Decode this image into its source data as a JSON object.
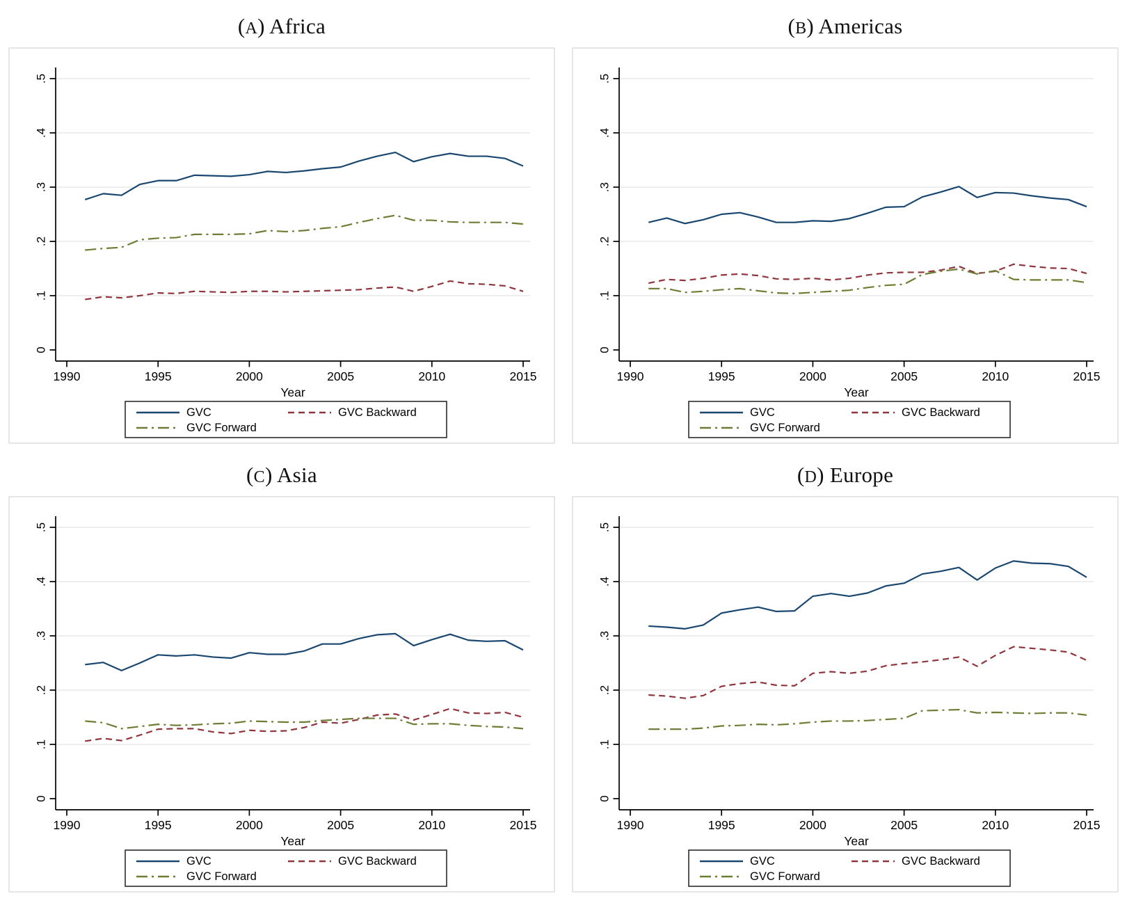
{
  "figure": {
    "x_axis_label": "Year",
    "x_ticks": [
      1990,
      1995,
      2000,
      2005,
      2010,
      2015
    ],
    "y_ticks": [
      "0",
      ".1",
      ".2",
      ".3",
      ".4",
      ".5"
    ],
    "y_tick_values": [
      0,
      0.1,
      0.2,
      0.3,
      0.4,
      0.5
    ],
    "legend_labels": [
      "GVC",
      "GVC Backward",
      "GVC Forward"
    ],
    "colors": {
      "gvc": "#1a476f",
      "gvc_backward": "#90353b",
      "gvc_forward": "#6d7d34",
      "gridline": "#e7eaea",
      "outer_border": "#d9d9d9",
      "axis": "#000000"
    }
  },
  "chart_data": [
    {
      "type": "line",
      "title": "(A) Africa",
      "title_letter": "A",
      "title_region": "Africa",
      "xlabel": "Year",
      "x_ticks": [
        1990,
        1995,
        2000,
        2005,
        2010,
        2015
      ],
      "y_ticks": [
        "0",
        ".1",
        ".2",
        ".3",
        ".4",
        ".5"
      ],
      "y_tick_values": [
        0,
        0.1,
        0.2,
        0.3,
        0.4,
        0.5
      ],
      "xlim": [
        1989.4,
        2015.3
      ],
      "ylim": [
        0,
        0.52
      ],
      "grid": "horizontal",
      "legend_position": "bottom",
      "x": [
        1991,
        1992,
        1993,
        1994,
        1995,
        1996,
        1997,
        1998,
        1999,
        2000,
        2001,
        2002,
        2003,
        2004,
        2005,
        2006,
        2007,
        2008,
        2009,
        2010,
        2011,
        2012,
        2013,
        2014,
        2015
      ],
      "series": [
        {
          "name": "GVC",
          "color": "#1a476f",
          "line_style": "solid",
          "values": [
            0.277,
            0.288,
            0.285,
            0.305,
            0.312,
            0.312,
            0.322,
            0.321,
            0.32,
            0.323,
            0.329,
            0.327,
            0.33,
            0.334,
            0.337,
            0.348,
            0.357,
            0.364,
            0.347,
            0.356,
            0.362,
            0.357,
            0.357,
            0.353,
            0.339
          ]
        },
        {
          "name": "GVC Backward",
          "color": "#90353b",
          "line_style": "dashed",
          "values": [
            0.093,
            0.098,
            0.096,
            0.1,
            0.105,
            0.104,
            0.108,
            0.107,
            0.106,
            0.108,
            0.108,
            0.107,
            0.108,
            0.109,
            0.11,
            0.111,
            0.114,
            0.116,
            0.108,
            0.117,
            0.127,
            0.122,
            0.121,
            0.118,
            0.108
          ]
        },
        {
          "name": "GVC Forward",
          "color": "#6d7d34",
          "line_style": "dash-dot",
          "values": [
            0.184,
            0.187,
            0.189,
            0.203,
            0.206,
            0.207,
            0.213,
            0.213,
            0.213,
            0.214,
            0.22,
            0.218,
            0.22,
            0.224,
            0.227,
            0.235,
            0.242,
            0.248,
            0.239,
            0.239,
            0.236,
            0.235,
            0.235,
            0.235,
            0.232
          ]
        }
      ]
    },
    {
      "type": "line",
      "title": "(B) Americas",
      "title_letter": "B",
      "title_region": "Americas",
      "xlabel": "Year",
      "x_ticks": [
        1990,
        1995,
        2000,
        2005,
        2010,
        2015
      ],
      "y_ticks": [
        "0",
        ".1",
        ".2",
        ".3",
        ".4",
        ".5"
      ],
      "y_tick_values": [
        0,
        0.1,
        0.2,
        0.3,
        0.4,
        0.5
      ],
      "xlim": [
        1989.4,
        2015.3
      ],
      "ylim": [
        0,
        0.52
      ],
      "grid": "horizontal",
      "legend_position": "bottom",
      "x": [
        1991,
        1992,
        1993,
        1994,
        1995,
        1996,
        1997,
        1998,
        1999,
        2000,
        2001,
        2002,
        2003,
        2004,
        2005,
        2006,
        2007,
        2008,
        2009,
        2010,
        2011,
        2012,
        2013,
        2014,
        2015
      ],
      "series": [
        {
          "name": "GVC",
          "color": "#1a476f",
          "line_style": "solid",
          "values": [
            0.235,
            0.243,
            0.233,
            0.24,
            0.25,
            0.253,
            0.245,
            0.235,
            0.235,
            0.238,
            0.237,
            0.242,
            0.252,
            0.263,
            0.264,
            0.282,
            0.291,
            0.301,
            0.281,
            0.29,
            0.289,
            0.284,
            0.28,
            0.277,
            0.264
          ]
        },
        {
          "name": "GVC Backward",
          "color": "#90353b",
          "line_style": "dashed",
          "values": [
            0.123,
            0.13,
            0.128,
            0.132,
            0.138,
            0.14,
            0.137,
            0.131,
            0.13,
            0.132,
            0.129,
            0.132,
            0.138,
            0.142,
            0.143,
            0.143,
            0.147,
            0.154,
            0.141,
            0.145,
            0.158,
            0.154,
            0.151,
            0.15,
            0.141
          ]
        },
        {
          "name": "GVC Forward",
          "color": "#6d7d34",
          "line_style": "dash-dot",
          "values": [
            0.113,
            0.113,
            0.106,
            0.108,
            0.111,
            0.113,
            0.109,
            0.105,
            0.104,
            0.106,
            0.108,
            0.11,
            0.115,
            0.119,
            0.121,
            0.139,
            0.145,
            0.149,
            0.14,
            0.146,
            0.13,
            0.129,
            0.129,
            0.129,
            0.124
          ]
        }
      ]
    },
    {
      "type": "line",
      "title": "(C) Asia",
      "title_letter": "C",
      "title_region": "Asia",
      "xlabel": "Year",
      "x_ticks": [
        1990,
        1995,
        2000,
        2005,
        2010,
        2015
      ],
      "y_ticks": [
        "0",
        ".1",
        ".2",
        ".3",
        ".4",
        ".5"
      ],
      "y_tick_values": [
        0,
        0.1,
        0.2,
        0.3,
        0.4,
        0.5
      ],
      "xlim": [
        1989.4,
        2015.3
      ],
      "ylim": [
        0,
        0.52
      ],
      "grid": "horizontal",
      "legend_position": "bottom",
      "x": [
        1991,
        1992,
        1993,
        1994,
        1995,
        1996,
        1997,
        1998,
        1999,
        2000,
        2001,
        2002,
        2003,
        2004,
        2005,
        2006,
        2007,
        2008,
        2009,
        2010,
        2011,
        2012,
        2013,
        2014,
        2015
      ],
      "series": [
        {
          "name": "GVC",
          "color": "#1a476f",
          "line_style": "solid",
          "values": [
            0.247,
            0.251,
            0.236,
            0.25,
            0.265,
            0.263,
            0.265,
            0.261,
            0.259,
            0.269,
            0.266,
            0.266,
            0.272,
            0.285,
            0.285,
            0.295,
            0.302,
            0.304,
            0.282,
            0.293,
            0.303,
            0.292,
            0.29,
            0.291,
            0.274
          ]
        },
        {
          "name": "GVC Backward",
          "color": "#90353b",
          "line_style": "dashed",
          "values": [
            0.106,
            0.111,
            0.107,
            0.117,
            0.128,
            0.129,
            0.129,
            0.123,
            0.12,
            0.126,
            0.124,
            0.125,
            0.131,
            0.141,
            0.139,
            0.146,
            0.154,
            0.156,
            0.145,
            0.155,
            0.166,
            0.158,
            0.157,
            0.159,
            0.15
          ]
        },
        {
          "name": "GVC Forward",
          "color": "#6d7d34",
          "line_style": "dash-dot",
          "values": [
            0.143,
            0.14,
            0.129,
            0.133,
            0.137,
            0.135,
            0.136,
            0.138,
            0.139,
            0.143,
            0.142,
            0.141,
            0.141,
            0.144,
            0.146,
            0.148,
            0.148,
            0.148,
            0.137,
            0.138,
            0.138,
            0.135,
            0.133,
            0.132,
            0.129
          ]
        }
      ]
    },
    {
      "type": "line",
      "title": "(D) Europe",
      "title_letter": "D",
      "title_region": "Europe",
      "xlabel": "Year",
      "x_ticks": [
        1990,
        1995,
        2000,
        2005,
        2010,
        2015
      ],
      "y_ticks": [
        "0",
        ".1",
        ".2",
        ".3",
        ".4",
        ".5"
      ],
      "y_tick_values": [
        0,
        0.1,
        0.2,
        0.3,
        0.4,
        0.5
      ],
      "xlim": [
        1989.4,
        2015.3
      ],
      "ylim": [
        0,
        0.52
      ],
      "grid": "horizontal",
      "legend_position": "bottom",
      "x": [
        1991,
        1992,
        1993,
        1994,
        1995,
        1996,
        1997,
        1998,
        1999,
        2000,
        2001,
        2002,
        2003,
        2004,
        2005,
        2006,
        2007,
        2008,
        2009,
        2010,
        2011,
        2012,
        2013,
        2014,
        2015
      ],
      "series": [
        {
          "name": "GVC",
          "color": "#1a476f",
          "line_style": "solid",
          "values": [
            0.318,
            0.316,
            0.313,
            0.32,
            0.342,
            0.348,
            0.353,
            0.345,
            0.346,
            0.373,
            0.378,
            0.373,
            0.379,
            0.392,
            0.397,
            0.414,
            0.419,
            0.426,
            0.403,
            0.425,
            0.438,
            0.434,
            0.433,
            0.428,
            0.408
          ]
        },
        {
          "name": "GVC Backward",
          "color": "#90353b",
          "line_style": "dashed",
          "values": [
            0.191,
            0.189,
            0.185,
            0.19,
            0.207,
            0.212,
            0.215,
            0.209,
            0.208,
            0.231,
            0.234,
            0.231,
            0.235,
            0.245,
            0.249,
            0.252,
            0.256,
            0.261,
            0.244,
            0.264,
            0.28,
            0.277,
            0.274,
            0.27,
            0.255
          ]
        },
        {
          "name": "GVC Forward",
          "color": "#6d7d34",
          "line_style": "dash-dot",
          "values": [
            0.128,
            0.128,
            0.128,
            0.13,
            0.134,
            0.135,
            0.137,
            0.136,
            0.138,
            0.141,
            0.143,
            0.143,
            0.144,
            0.146,
            0.148,
            0.162,
            0.163,
            0.164,
            0.158,
            0.159,
            0.158,
            0.157,
            0.158,
            0.158,
            0.154
          ]
        }
      ]
    }
  ]
}
